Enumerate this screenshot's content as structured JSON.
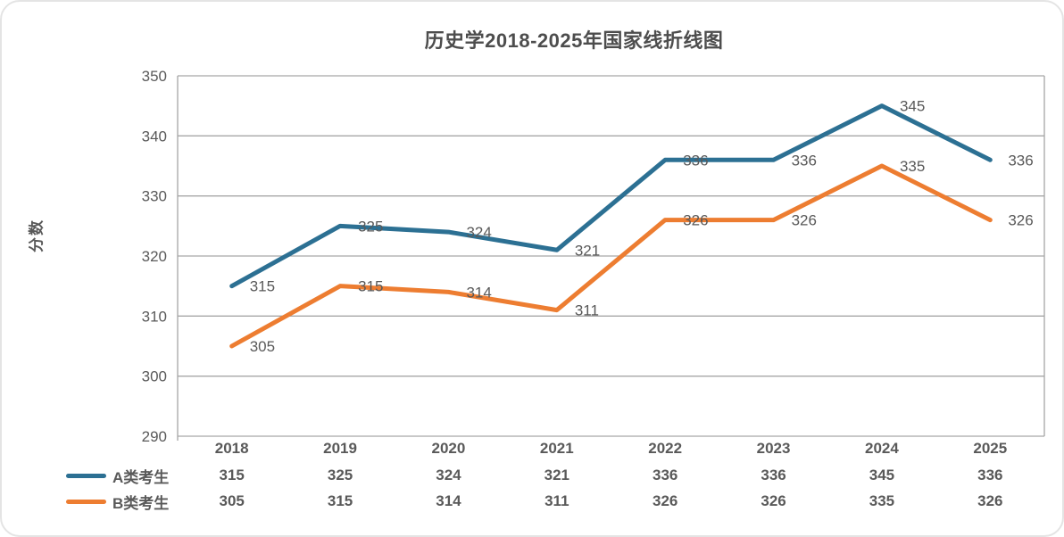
{
  "title": "历史学2018-2025年国家线折线图",
  "colors": {
    "series_a": "#2c7093",
    "series_b": "#ed7d31",
    "gridline": "#a6a6a6",
    "text": "#595959",
    "title_text": "#4d4d4d"
  },
  "chart_data": {
    "type": "line",
    "title": "历史学2018-2025年国家线折线图",
    "xlabel": "",
    "ylabel": "分数",
    "categories": [
      "2018",
      "2019",
      "2020",
      "2021",
      "2022",
      "2023",
      "2024",
      "2025"
    ],
    "series": [
      {
        "name": "A类考生",
        "color": "#2c7093",
        "values": [
          315,
          325,
          324,
          321,
          336,
          336,
          345,
          336
        ]
      },
      {
        "name": "B类考生",
        "color": "#ed7d31",
        "values": [
          305,
          315,
          314,
          311,
          326,
          326,
          335,
          326
        ]
      }
    ],
    "ylim": [
      290,
      350
    ],
    "yticks": [
      290,
      300,
      310,
      320,
      330,
      340,
      350
    ],
    "grid": true,
    "data_labels": true,
    "data_table": true,
    "legend_position": "bottom-left"
  }
}
